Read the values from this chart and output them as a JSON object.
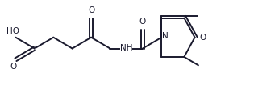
{
  "line_color": "#1a1a2e",
  "bg_color": "#ffffff",
  "lw": 1.4,
  "fs": 7.5,
  "figw": 3.46,
  "figh": 1.21,
  "xlim": [
    0,
    10.5
  ],
  "ylim": [
    0.2,
    3.8
  ]
}
